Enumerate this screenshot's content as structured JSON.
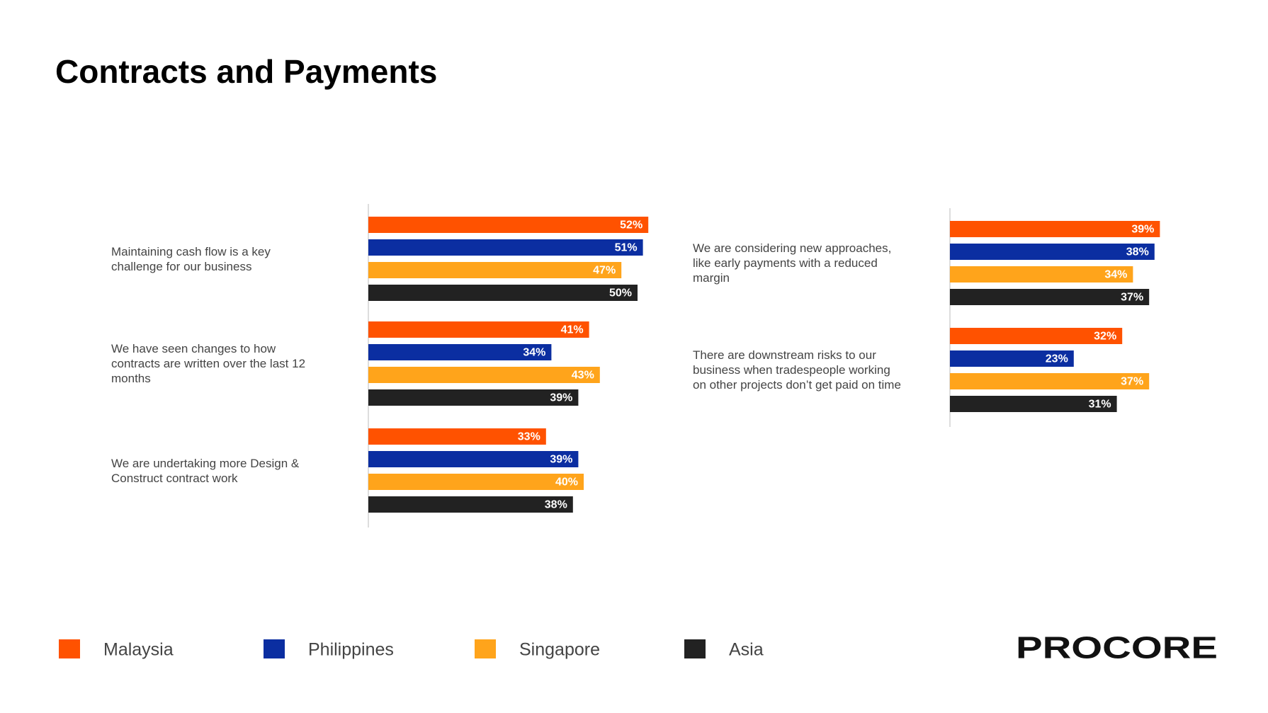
{
  "chart_data": {
    "type": "bar",
    "orientation": "horizontal",
    "title": "Contracts and Payments",
    "categories": [
      "Maintaining cash flow is a key challenge for our business",
      "We have seen changes to how contracts are written over the last 12 months",
      "We are undertaking more Design & Construct contract work",
      "We are considering new approaches, like early payments with a reduced margin",
      "There are downstream risks to our business when tradespeople working on other projects don’t get paid on time"
    ],
    "series": [
      {
        "name": "Malaysia",
        "color": "#ff5200",
        "values": [
          52,
          41,
          33,
          39,
          32
        ],
        "value_labels": [
          "52%",
          "41%",
          "33%",
          "39%",
          "32%"
        ]
      },
      {
        "name": "Philippines",
        "color": "#0b2ea1",
        "values": [
          51,
          34,
          39,
          38,
          23
        ],
        "value_labels": [
          "51%",
          "34%",
          "39%",
          "38%",
          "23%"
        ]
      },
      {
        "name": "Singapore",
        "color": "#ffa41b",
        "values": [
          47,
          43,
          40,
          34,
          37
        ],
        "value_labels": [
          "47%",
          "43%",
          "40%",
          "34%",
          "37%"
        ]
      },
      {
        "name": "Asia",
        "color": "#222222",
        "values": [
          50,
          39,
          38,
          37,
          31
        ],
        "value_labels": [
          "50%",
          "39%",
          "38%",
          "37%",
          "31%"
        ]
      }
    ],
    "xlim": [
      0,
      55
    ]
  },
  "brand": "PROCORE"
}
